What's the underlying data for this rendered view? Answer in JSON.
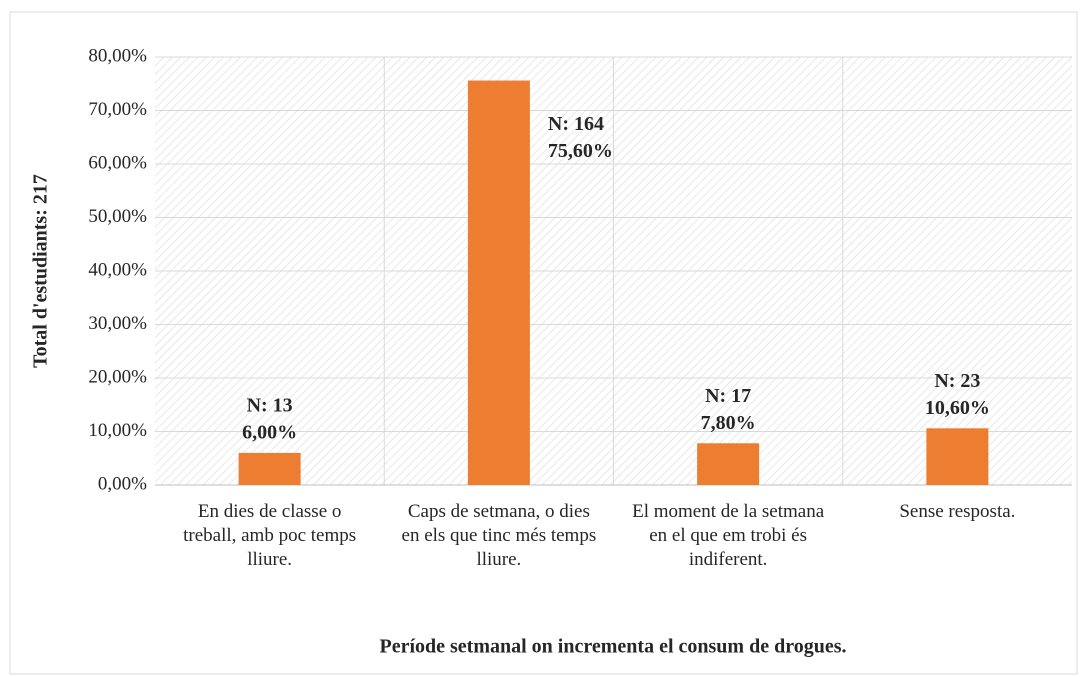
{
  "chart_data": {
    "type": "bar",
    "x_axis_label": "Període setmanal on incrementa el consum de drogues.",
    "y_axis_label": "Total d'estudiants: 217",
    "categories": [
      "En dies de classe o treball, amb poc temps lliure.",
      "Caps de setmana, o dies en els que tinc més temps lliure.",
      "El moment de la setmana en el que em trobi és indiferent.",
      "Sense resposta."
    ],
    "values": [
      6.0,
      75.6,
      7.8,
      10.6
    ],
    "value_labels": [
      "6,00%",
      "75,60%",
      "7,80%",
      "10,60%"
    ],
    "count_labels": [
      "N: 13",
      "N: 164",
      "N: 17",
      "N: 23"
    ],
    "color": "#ed7d31",
    "ylim": [
      0,
      80
    ],
    "yticks": [
      {
        "value": 0,
        "label": "0,00%"
      },
      {
        "value": 10,
        "label": "10,00%"
      },
      {
        "value": 20,
        "label": "20,00%"
      },
      {
        "value": 30,
        "label": "30,00%"
      },
      {
        "value": 40,
        "label": "40,00%"
      },
      {
        "value": 50,
        "label": "50,00%"
      },
      {
        "value": 60,
        "label": "60,00%"
      },
      {
        "value": 70,
        "label": "70,00%"
      },
      {
        "value": 80,
        "label": "80,00%"
      }
    ],
    "grid": true
  }
}
